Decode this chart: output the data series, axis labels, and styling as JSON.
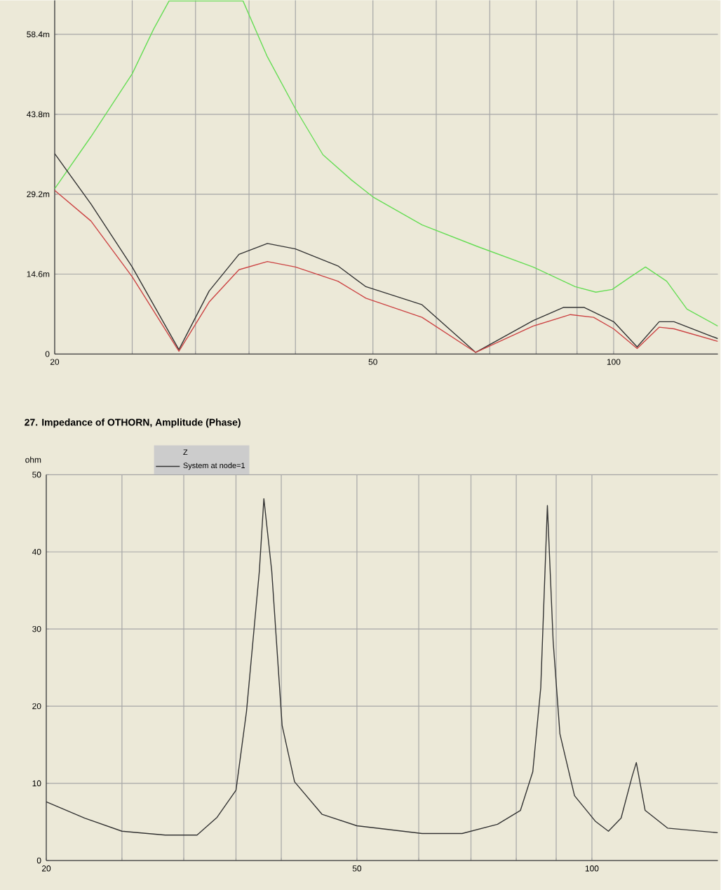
{
  "chart_data": [
    {
      "type": "line",
      "log": "x",
      "grid": true,
      "line_style": "solid",
      "xlim": [
        20,
        135
      ],
      "ylim": [
        0,
        64.6
      ],
      "xticks": [
        20,
        {
          "value": 25,
          "label": null
        },
        {
          "value": 30,
          "label": null
        },
        {
          "value": 35,
          "label": null
        },
        {
          "value": 40,
          "label": null
        },
        50,
        {
          "value": 60,
          "label": null
        },
        {
          "value": 70,
          "label": null
        },
        {
          "value": 80,
          "label": null
        },
        {
          "value": 90,
          "label": null
        },
        100
      ],
      "yticks": [
        0,
        {
          "value": 14.6,
          "label": "14.6m"
        },
        {
          "value": 29.2,
          "label": "29.2m"
        },
        {
          "value": 43.8,
          "label": "43.8m"
        },
        {
          "value": 58.4,
          "label": "58.4m"
        }
      ],
      "series": [
        {
          "color": "#66dd55",
          "x": [
            20,
            22.2,
            25,
            26.6,
            27.8,
            34.4,
            36.9,
            40,
            43.3,
            47,
            50,
            57.6,
            67.4,
            79.3,
            89.5,
            95,
            99.6,
            105,
            109.6,
            116.5,
            123.5,
            135
          ],
          "values": [
            30.2,
            39.7,
            51.2,
            59.4,
            64.5,
            64.5,
            54.3,
            44.8,
            36.4,
            31.8,
            28.7,
            23.6,
            19.7,
            15.9,
            12.3,
            11.3,
            11.8,
            14.1,
            15.9,
            13.3,
            8.2,
            5.1
          ]
        },
        {
          "color": "#333333",
          "x": [
            20,
            22.2,
            25,
            28.6,
            31.2,
            34,
            36.9,
            40,
            45.2,
            49,
            57.6,
            67.2,
            79.3,
            86.5,
            91.9,
            100,
            107,
            114,
            119,
            135
          ],
          "values": [
            36.6,
            27.4,
            15.9,
            0.8,
            11.5,
            18.2,
            20.2,
            19.2,
            16.1,
            12.3,
            9.0,
            0.3,
            6.1,
            8.5,
            8.5,
            5.9,
            1.3,
            5.9,
            5.9,
            2.8
          ]
        },
        {
          "color": "#cc4444",
          "x": [
            20,
            22.2,
            25,
            28.6,
            31.2,
            34,
            36.9,
            40,
            45.2,
            49,
            57.6,
            67.2,
            79.3,
            88.3,
            94.4,
            100,
            107,
            114,
            119,
            135
          ],
          "values": [
            29.9,
            24.3,
            14.1,
            0.5,
            9.5,
            15.4,
            16.9,
            15.9,
            13.3,
            10.2,
            6.7,
            0.3,
            5.1,
            7.2,
            6.7,
            4.6,
            1.0,
            4.9,
            4.6,
            2.3
          ]
        }
      ]
    },
    {
      "type": "line",
      "log": "x",
      "grid": true,
      "line_style": "solid",
      "legend": "top left",
      "title": "27. Impedance of OTHORN, Amplitude (Phase)",
      "ylabel": "ohm",
      "legend_title": "Z",
      "xlim": [
        20,
        145
      ],
      "ylim": [
        0,
        50
      ],
      "xticks": [
        20,
        {
          "value": 25,
          "label": null
        },
        {
          "value": 30,
          "label": null
        },
        {
          "value": 35,
          "label": null
        },
        {
          "value": 40,
          "label": null
        },
        50,
        {
          "value": 60,
          "label": null
        },
        {
          "value": 70,
          "label": null
        },
        {
          "value": 80,
          "label": null
        },
        {
          "value": 90,
          "label": null
        },
        100
      ],
      "yticks": [
        0,
        10,
        20,
        30,
        40,
        50
      ],
      "series": [
        {
          "name": "System at node=1",
          "color": "#333333",
          "x": [
            20,
            22.4,
            25,
            28.4,
            31.2,
            33.1,
            35,
            36.1,
            37.5,
            38,
            38.9,
            40.1,
            41.6,
            45.1,
            50,
            60.6,
            68.2,
            75.7,
            81,
            84,
            86,
            87.7,
            89.2,
            91,
            95,
            101,
            105,
            109,
            112.6,
            114,
            117,
            125,
            145
          ],
          "values": [
            7.6,
            5.5,
            3.8,
            3.3,
            3.3,
            5.6,
            9.1,
            19.3,
            37.5,
            46.9,
            37.5,
            17.5,
            10.2,
            6.0,
            4.5,
            3.5,
            3.5,
            4.7,
            6.5,
            11.5,
            22.4,
            46.0,
            28.4,
            16.4,
            8.4,
            5.1,
            3.8,
            5.5,
            10.9,
            12.7,
            6.5,
            4.2,
            3.6
          ]
        }
      ]
    }
  ]
}
